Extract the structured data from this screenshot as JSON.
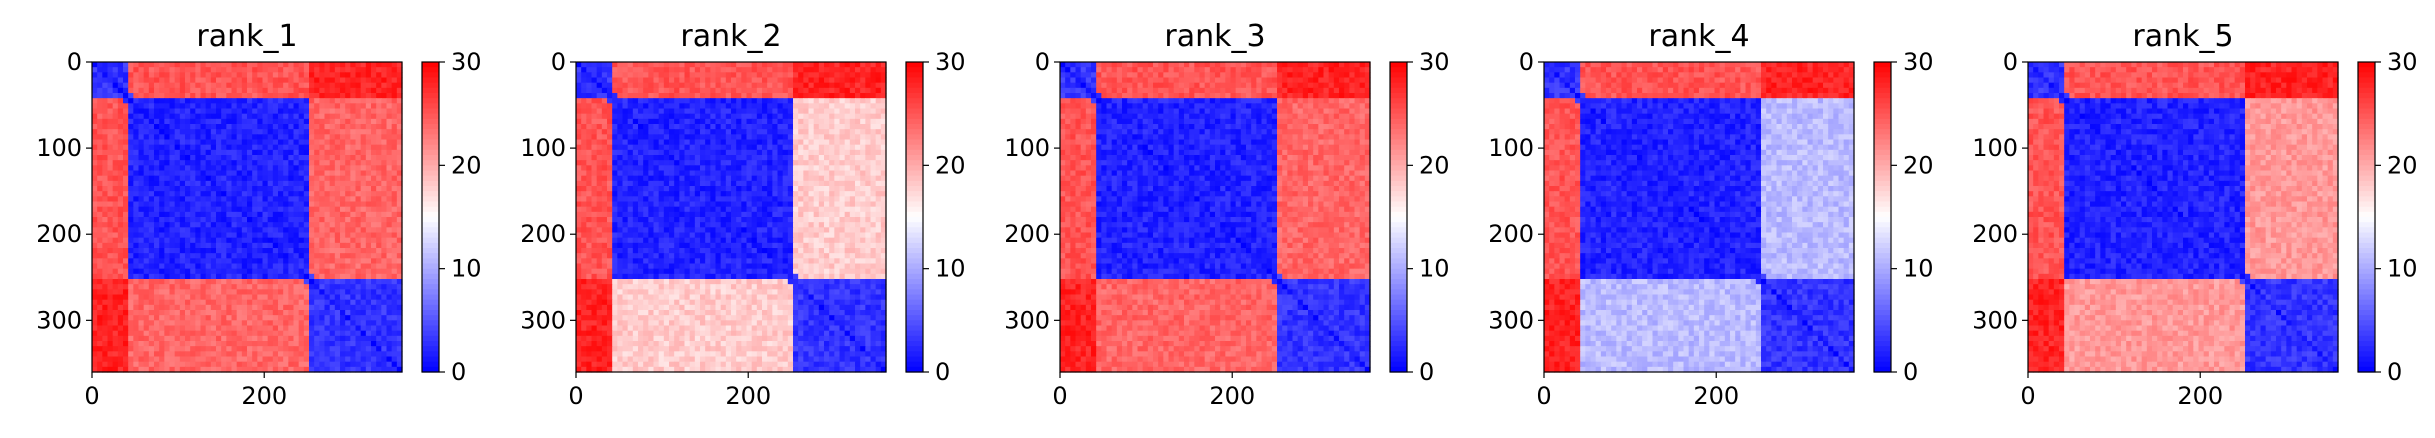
{
  "chart_data": [
    {
      "type": "heatmap",
      "title": "rank_1",
      "xlim": [
        0,
        360
      ],
      "ylim": [
        360,
        0
      ],
      "x_ticks": [
        "0",
        "200"
      ],
      "y_ticks": [
        "0",
        "100",
        "200",
        "300"
      ],
      "colorbar": {
        "range": [
          0,
          30
        ],
        "ticks": [
          "0",
          "10",
          "20",
          "30"
        ],
        "colormap": "bwr"
      },
      "domain_boundaries": [
        45,
        255
      ],
      "block_values": [
        [
          3,
          25,
          28
        ],
        [
          25,
          2,
          24
        ],
        [
          28,
          24,
          3
        ]
      ]
    },
    {
      "type": "heatmap",
      "title": "rank_2",
      "xlim": [
        0,
        360
      ],
      "ylim": [
        360,
        0
      ],
      "x_ticks": [
        "0",
        "200"
      ],
      "y_ticks": [
        "0",
        "100",
        "200",
        "300"
      ],
      "colorbar": {
        "range": [
          0,
          30
        ],
        "ticks": [
          "0",
          "10",
          "20",
          "30"
        ],
        "colormap": "bwr"
      },
      "domain_boundaries": [
        45,
        255
      ],
      "block_values": [
        [
          3,
          25,
          28
        ],
        [
          25,
          2,
          18
        ],
        [
          28,
          18,
          3
        ]
      ]
    },
    {
      "type": "heatmap",
      "title": "rank_3",
      "xlim": [
        0,
        360
      ],
      "ylim": [
        360,
        0
      ],
      "x_ticks": [
        "0",
        "200"
      ],
      "y_ticks": [
        "0",
        "100",
        "200",
        "300"
      ],
      "colorbar": {
        "range": [
          0,
          30
        ],
        "ticks": [
          "0",
          "10",
          "20",
          "30"
        ],
        "colormap": "bwr"
      },
      "domain_boundaries": [
        45,
        255
      ],
      "block_values": [
        [
          3,
          25,
          28
        ],
        [
          25,
          2,
          24
        ],
        [
          28,
          24,
          3
        ]
      ]
    },
    {
      "type": "heatmap",
      "title": "rank_4",
      "xlim": [
        0,
        360
      ],
      "ylim": [
        360,
        0
      ],
      "x_ticks": [
        "0",
        "200"
      ],
      "y_ticks": [
        "0",
        "100",
        "200",
        "300"
      ],
      "colorbar": {
        "range": [
          0,
          30
        ],
        "ticks": [
          "0",
          "10",
          "20",
          "30"
        ],
        "colormap": "bwr"
      },
      "domain_boundaries": [
        45,
        255
      ],
      "block_values": [
        [
          3,
          25,
          28
        ],
        [
          25,
          2,
          11
        ],
        [
          28,
          11,
          3
        ]
      ]
    },
    {
      "type": "heatmap",
      "title": "rank_5",
      "xlim": [
        0,
        360
      ],
      "ylim": [
        360,
        0
      ],
      "x_ticks": [
        "0",
        "200"
      ],
      "y_ticks": [
        "0",
        "100",
        "200",
        "300"
      ],
      "colorbar": {
        "range": [
          0,
          30
        ],
        "ticks": [
          "0",
          "10",
          "20",
          "30"
        ],
        "colormap": "bwr"
      },
      "domain_boundaries": [
        45,
        255
      ],
      "block_values": [
        [
          3,
          25,
          28
        ],
        [
          25,
          2,
          21
        ],
        [
          28,
          21,
          3
        ]
      ]
    }
  ]
}
